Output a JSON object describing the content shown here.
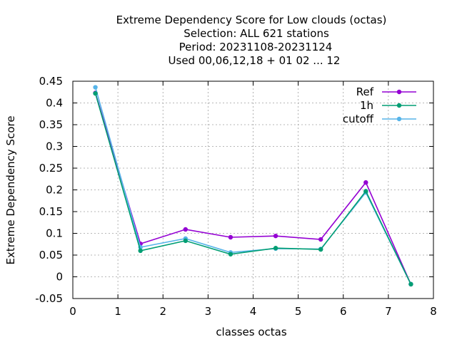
{
  "chart_data": {
    "type": "line",
    "title_lines": [
      "Extreme Dependency Score  for Low clouds (octas)",
      "Selection: ALL    621 stations",
      "Period: 20231108-20231124",
      "Used  00,06,12,18 + 01 02 ... 12"
    ],
    "xlabel": "classes octas",
    "ylabel": "Extreme Dependency Score",
    "xlim": [
      0,
      8
    ],
    "ylim": [
      -0.05,
      0.45
    ],
    "x_ticks": [
      0,
      1,
      2,
      3,
      4,
      5,
      6,
      7,
      8
    ],
    "x_tick_labels": [
      "0",
      "1",
      "2",
      "3",
      "4",
      "5",
      "6",
      "7",
      "8"
    ],
    "y_ticks": [
      -0.05,
      0,
      0.05,
      0.1,
      0.15,
      0.2,
      0.25,
      0.3,
      0.35,
      0.4,
      0.45
    ],
    "y_tick_labels": [
      "-0.05",
      "0",
      "0.05",
      "0.1",
      "0.15",
      "0.2",
      "0.25",
      "0.3",
      "0.35",
      "0.4",
      "0.45"
    ],
    "grid": true,
    "legend_position": "top-right",
    "x": [
      0.5,
      1.5,
      2.5,
      3.5,
      4.5,
      5.5,
      6.5,
      7.5
    ],
    "series": [
      {
        "name": "Ref",
        "color": "#9400d3",
        "values": [
          0.423,
          0.076,
          0.109,
          0.091,
          0.094,
          0.086,
          0.217,
          -0.017
        ]
      },
      {
        "name": "1h",
        "color": "#009e73",
        "values": [
          0.422,
          0.06,
          0.083,
          0.052,
          0.066,
          0.063,
          0.197,
          -0.017
        ]
      },
      {
        "name": "cutoff",
        "color": "#56b4e9",
        "values": [
          0.436,
          0.068,
          0.088,
          0.056,
          0.065,
          0.064,
          0.194,
          -0.017
        ]
      }
    ]
  }
}
